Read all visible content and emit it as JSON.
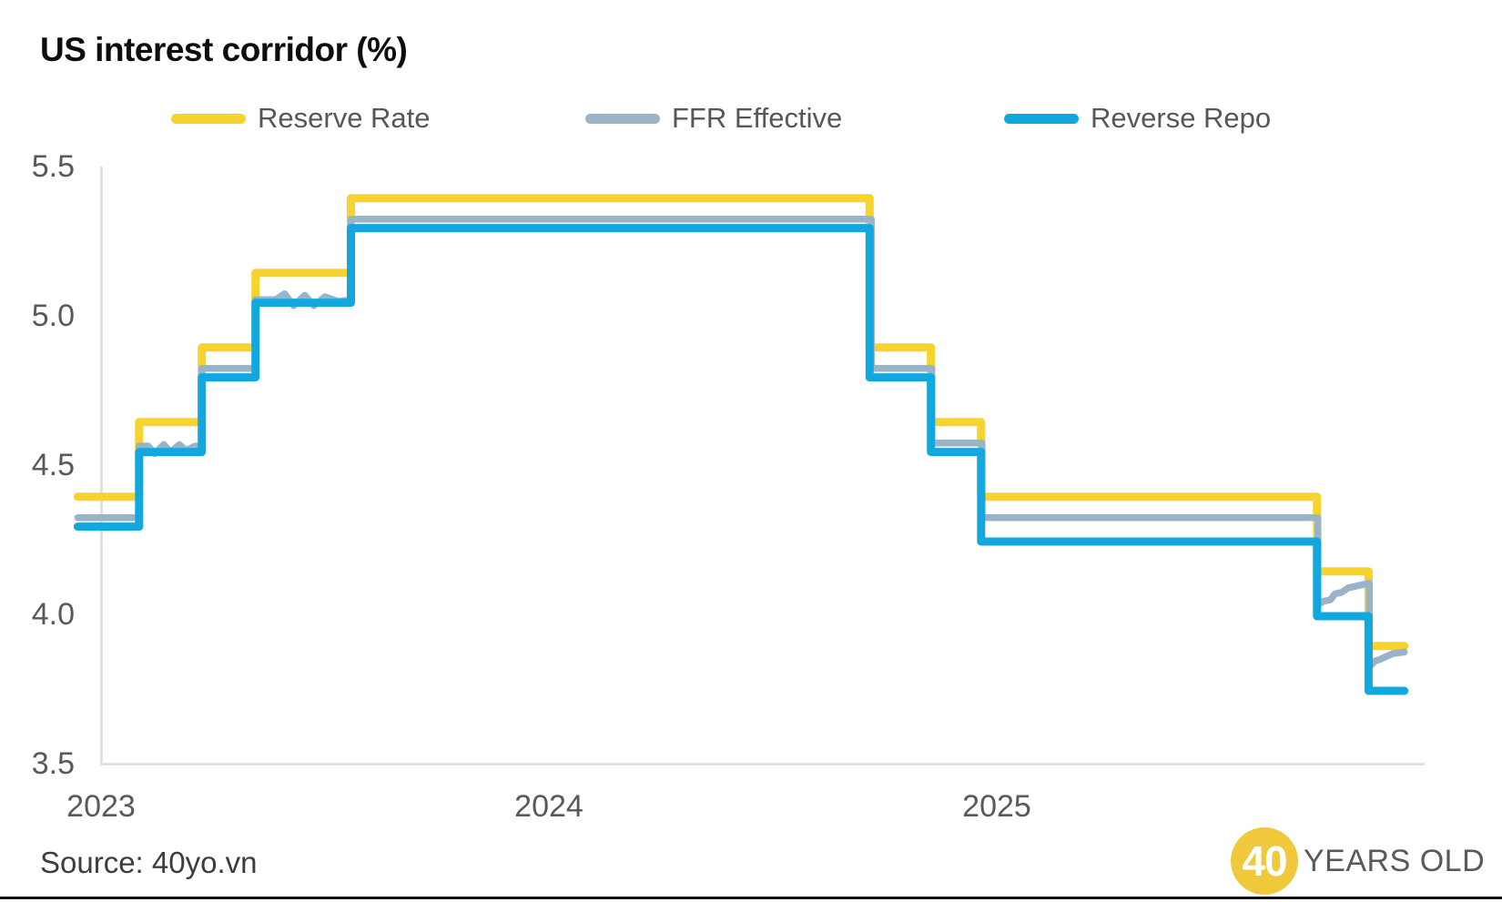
{
  "title": "US interest corridor (%)",
  "source": "Source: 40yo.vn",
  "logo": {
    "circle_text": "40",
    "suffix": "YEARS OLD",
    "circle_color": "#EFC83C"
  },
  "colors": {
    "reserve_rate": "#F6D32D",
    "ffr_effective": "#9AB3C9",
    "reverse_repo": "#12A7DE",
    "axis_line": "#DCDCDC",
    "tick_text": "#595959",
    "title_text": "#0D0D0D",
    "footer_bar": "#0D1117"
  },
  "legend": [
    {
      "label": "Reserve Rate",
      "series": "reserve_rate"
    },
    {
      "label": "FFR Effective",
      "series": "ffr_effective"
    },
    {
      "label": "Reverse Repo",
      "series": "reverse_repo"
    }
  ],
  "chart_data": {
    "type": "line",
    "title": "US interest corridor (%)",
    "xlabel": "",
    "ylabel": "%",
    "ylim": [
      3.5,
      5.5
    ],
    "xlim": [
      2022.948,
      2025.915
    ],
    "grid": false,
    "legend_position": "top",
    "y_ticks": [
      "5.5",
      "5.0",
      "4.5",
      "4.0",
      "3.5"
    ],
    "x_ticks": [
      "2023",
      "2024",
      "2025"
    ],
    "series": [
      {
        "name": "Reserve Rate",
        "key": "reserve_rate",
        "color": "#F6D32D",
        "style": "step",
        "end": 2025.91,
        "steps": [
          [
            2022.948,
            4.4
          ],
          [
            2023.085,
            4.65
          ],
          [
            2023.225,
            4.9
          ],
          [
            2023.345,
            5.15
          ],
          [
            2023.558,
            5.4
          ],
          [
            2024.716,
            4.9
          ],
          [
            2024.853,
            4.65
          ],
          [
            2024.965,
            4.4
          ],
          [
            2025.715,
            4.15
          ],
          [
            2025.83,
            3.9
          ]
        ]
      },
      {
        "name": "FFR Effective",
        "key": "ffr_effective",
        "color": "#9AB3C9",
        "style": "points",
        "points": [
          [
            2022.948,
            4.33
          ],
          [
            2023.085,
            4.33
          ],
          [
            2023.085,
            4.57
          ],
          [
            2023.105,
            4.57
          ],
          [
            2023.12,
            4.545
          ],
          [
            2023.14,
            4.575
          ],
          [
            2023.155,
            4.55
          ],
          [
            2023.175,
            4.575
          ],
          [
            2023.19,
            4.555
          ],
          [
            2023.21,
            4.57
          ],
          [
            2023.225,
            4.57
          ],
          [
            2023.225,
            4.83
          ],
          [
            2023.345,
            4.83
          ],
          [
            2023.345,
            5.06
          ],
          [
            2023.39,
            5.06
          ],
          [
            2023.41,
            5.08
          ],
          [
            2023.43,
            5.04
          ],
          [
            2023.455,
            5.075
          ],
          [
            2023.475,
            5.04
          ],
          [
            2023.5,
            5.07
          ],
          [
            2023.53,
            5.055
          ],
          [
            2023.558,
            5.06
          ],
          [
            2023.558,
            5.33
          ],
          [
            2024.72,
            5.33
          ],
          [
            2024.72,
            4.83
          ],
          [
            2024.855,
            4.83
          ],
          [
            2024.855,
            4.58
          ],
          [
            2024.967,
            4.58
          ],
          [
            2024.967,
            4.33
          ],
          [
            2025.717,
            4.33
          ],
          [
            2025.717,
            4.04
          ],
          [
            2025.73,
            4.05
          ],
          [
            2025.745,
            4.055
          ],
          [
            2025.755,
            4.075
          ],
          [
            2025.77,
            4.08
          ],
          [
            2025.785,
            4.095
          ],
          [
            2025.8,
            4.1
          ],
          [
            2025.815,
            4.105
          ],
          [
            2025.832,
            4.11
          ],
          [
            2025.832,
            3.83
          ],
          [
            2025.845,
            3.85
          ],
          [
            2025.855,
            3.855
          ],
          [
            2025.87,
            3.865
          ],
          [
            2025.885,
            3.875
          ],
          [
            2025.91,
            3.88
          ]
        ]
      },
      {
        "name": "Reverse Repo",
        "key": "reverse_repo",
        "color": "#12A7DE",
        "style": "step",
        "end": 2025.91,
        "steps": [
          [
            2022.948,
            4.3
          ],
          [
            2023.085,
            4.55
          ],
          [
            2023.225,
            4.8
          ],
          [
            2023.345,
            5.05
          ],
          [
            2023.558,
            5.3
          ],
          [
            2024.716,
            4.8
          ],
          [
            2024.853,
            4.55
          ],
          [
            2024.965,
            4.25
          ],
          [
            2025.715,
            4.0
          ],
          [
            2025.83,
            3.75
          ]
        ]
      }
    ]
  }
}
